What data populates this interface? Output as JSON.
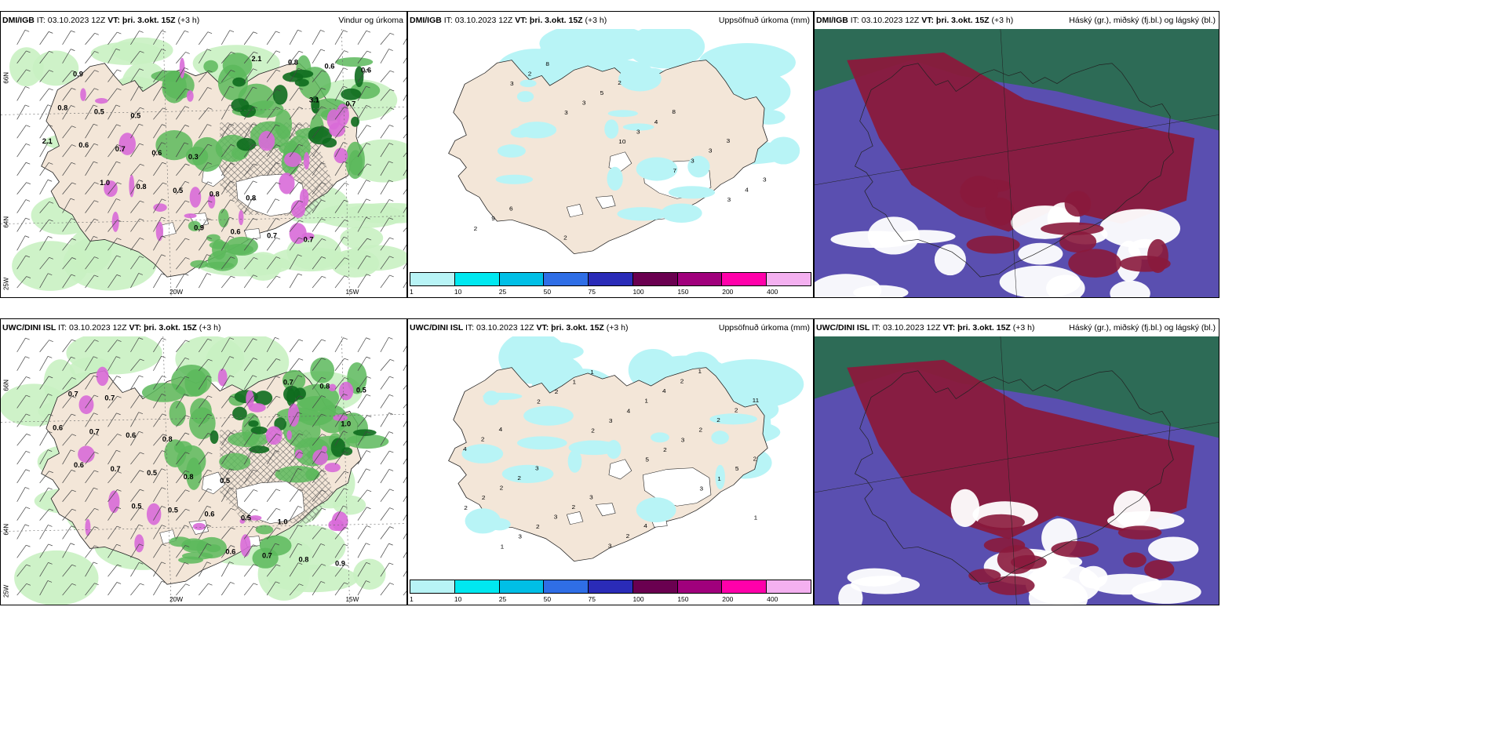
{
  "colors": {
    "land": "#f3e6d8",
    "snow": "#ffffff",
    "ocean_bg": "#ffffff",
    "precip_light": "#c9f1c2",
    "precip_mid": "#5cb85c",
    "precip_dark": "#0e6b1e",
    "snowfall": "#d86ad8",
    "accum": "#b8f4f6",
    "cloud_high": "#2d6b56",
    "cloud_mid": "#8a1a3c",
    "cloud_low": "#5a4fb0"
  },
  "colorbar": {
    "colors": [
      "#b8f4f6",
      "#00e8f0",
      "#00bfe6",
      "#2f6ee6",
      "#2a2bb8",
      "#6a0050",
      "#a0007c",
      "#ff00aa",
      "#f4b0f0"
    ],
    "ticks": [
      "1",
      "10",
      "25",
      "50",
      "75",
      "100",
      "150",
      "200",
      "400"
    ]
  },
  "panels": [
    {
      "id": "p1",
      "model": "DMI/IGB",
      "it": "IT: 03.10.2023 12Z",
      "vt": "VT: þri. 3.okt. 15Z",
      "lead": "(+3 h)",
      "right": "Vindur og úrkoma",
      "type": "wind",
      "labels": [
        "0.9",
        "0.5",
        "0.3",
        "0.8",
        "0.7",
        "0.6",
        "0.5",
        "0.6",
        "0.8",
        "0.7",
        "0.6",
        "0.8",
        "0.7",
        "0.5",
        "0.6",
        "0.8",
        "0.7",
        "0.6",
        "0.8",
        "0.9",
        "2.1",
        "3.1",
        "2.1",
        "1.0"
      ],
      "axes": {
        "lat66": "66N",
        "lat64": "64N",
        "lon20": "20W",
        "lon15": "15W",
        "corner": "25W"
      }
    },
    {
      "id": "p2",
      "model": "DMI/IGB",
      "it": "IT: 03.10.2023 12Z",
      "vt": "VT: þri. 3.okt. 15Z",
      "lead": "(+3 h)",
      "right": "Uppsöfnuð úrkoma (mm)",
      "type": "accum",
      "labels": [
        "3",
        "3",
        "10",
        "7",
        "3",
        "2",
        "2",
        "3",
        "3",
        "3",
        "4",
        "9",
        "8",
        "5",
        "4",
        "3",
        "3",
        "6",
        "2",
        "2",
        "8",
        "3"
      ]
    },
    {
      "id": "p3",
      "model": "DMI/IGB",
      "it": "IT: 03.10.2023 12Z",
      "vt": "VT: þri. 3.okt. 15Z",
      "lead": "(+3 h)",
      "right": "Háský (gr.), miðský (fj.bl.) og lágský (bl.)",
      "type": "cloud"
    },
    {
      "id": "p4",
      "model": "UWC/DINI ISL",
      "it": "IT: 03.10.2023 12Z",
      "vt": "VT: þri. 3.okt. 15Z",
      "lead": "(+3 h)",
      "right": "",
      "type": "wind",
      "labels": [
        "0.7",
        "0.8",
        "0.5",
        "1.0",
        "0.9",
        "0.7",
        "0.6",
        "0.8",
        "0.5",
        "0.8",
        "0.5",
        "0.7",
        "0.5",
        "0.6",
        "0.7",
        "0.8",
        "0.6",
        "0.7",
        "0.5",
        "0.6",
        "0.7",
        "1.0",
        "0.6",
        "0.5"
      ],
      "axes": {
        "lat66": "66N",
        "lat64": "64N",
        "lon20": "20W",
        "lon15": "15W",
        "corner": "25W"
      }
    },
    {
      "id": "p5",
      "model": "UWC/DINI ISL",
      "it": "IT: 03.10.2023 12Z",
      "vt": "VT: þri. 3.okt. 15Z",
      "lead": "(+3 h)",
      "right": "Uppsöfnuð úrkoma (mm)",
      "type": "accum",
      "labels": [
        "2",
        "2",
        "5",
        "3",
        "1",
        "1",
        "2",
        "3",
        "2",
        "1",
        "2",
        "3",
        "1",
        "4",
        "3",
        "5",
        "2",
        "2",
        "1",
        "1",
        "2",
        "2",
        "2",
        "3",
        "3",
        "4",
        "2",
        "4",
        "2",
        "2",
        "2",
        "2",
        "2",
        "2",
        "3",
        "3",
        "4",
        "1",
        "11",
        "4"
      ]
    },
    {
      "id": "p6",
      "model": "UWC/DINI ISL",
      "it": "IT: 03.10.2023 12Z",
      "vt": "VT: þri. 3.okt. 15Z",
      "lead": "(+3 h)",
      "right": "Háský (gr.), miðský (fj.bl.) og lágský (bl.)",
      "type": "cloud"
    }
  ]
}
